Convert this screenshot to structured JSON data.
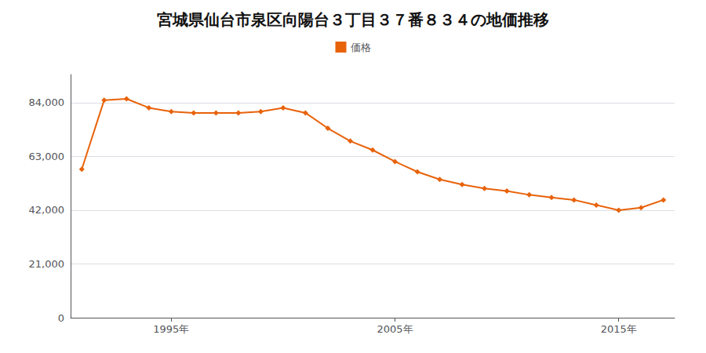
{
  "chart_data": {
    "type": "line",
    "title": "宮城県仙台市泉区向陽台３丁目３７番８３４の地価推移",
    "x": [
      1991,
      1992,
      1993,
      1994,
      1995,
      1996,
      1997,
      1998,
      1999,
      2000,
      2001,
      2002,
      2003,
      2004,
      2005,
      2006,
      2007,
      2008,
      2009,
      2010,
      2011,
      2012,
      2013,
      2014,
      2015,
      2016,
      2017
    ],
    "series": [
      {
        "name": "価格",
        "color": "#E8620A",
        "marker": "diamond",
        "values": [
          58000,
          85000,
          85500,
          82000,
          80500,
          80000,
          80000,
          80000,
          80500,
          82000,
          80000,
          74000,
          69000,
          65500,
          61000,
          57000,
          54000,
          52000,
          50500,
          49500,
          48000,
          47000,
          46000,
          44000,
          42000,
          43000,
          46000
        ]
      }
    ],
    "xlim": [
      1990.5,
      2017.5
    ],
    "xticks": [
      {
        "value": 1995,
        "label": "1995年"
      },
      {
        "value": 2005,
        "label": "2005年"
      },
      {
        "value": 2015,
        "label": "2015年"
      }
    ],
    "ylim": [
      0,
      95000
    ],
    "yticks": [
      0,
      {
        "value": 21000,
        "label": "21,000"
      },
      {
        "value": 42000,
        "label": "42,000"
      },
      {
        "value": 63000,
        "label": "63,000"
      },
      {
        "value": 84000,
        "label": "84,000"
      }
    ],
    "grid": true,
    "legend": "top"
  }
}
